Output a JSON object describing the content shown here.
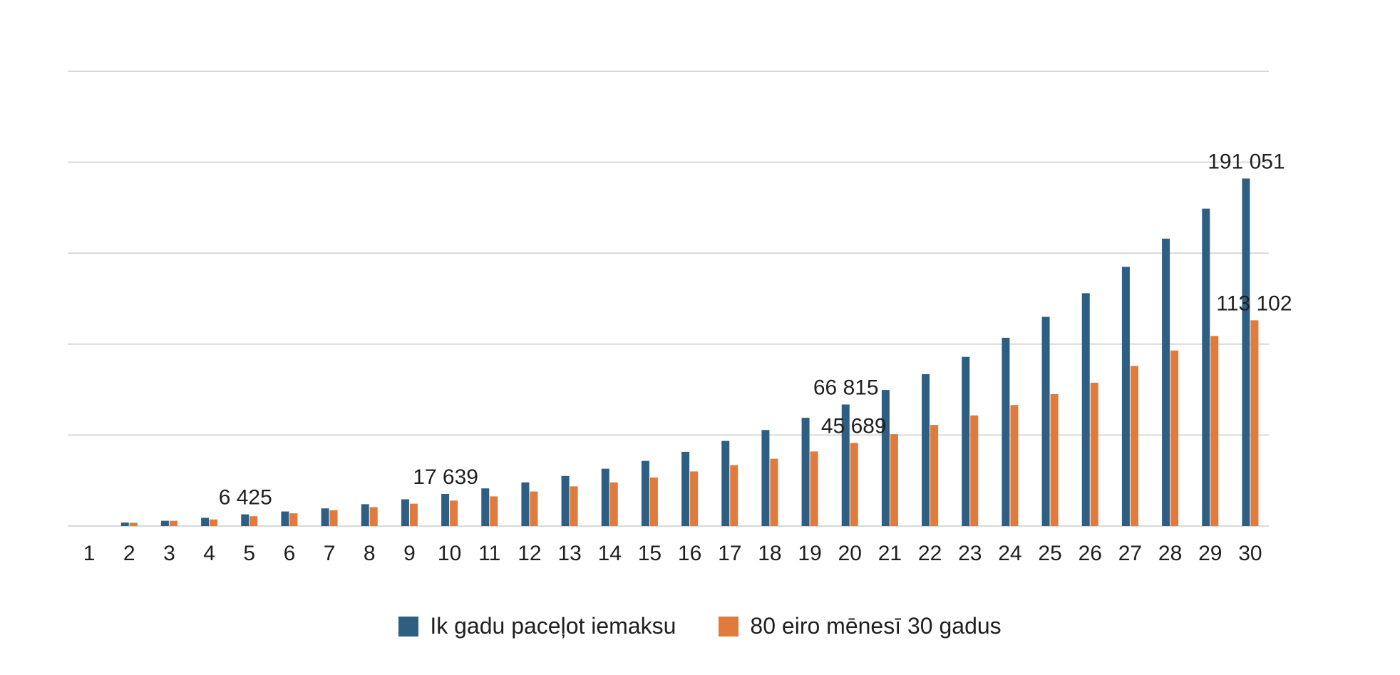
{
  "chart_data": {
    "type": "bar",
    "title": "",
    "xlabel": "",
    "ylabel": "",
    "categories": [
      "1",
      "2",
      "3",
      "4",
      "5",
      "6",
      "7",
      "8",
      "9",
      "10",
      "11",
      "12",
      "13",
      "14",
      "15",
      "16",
      "17",
      "18",
      "19",
      "20",
      "21",
      "22",
      "23",
      "24",
      "25",
      "26",
      "27",
      "28",
      "29",
      "30"
    ],
    "series": [
      {
        "name": "Ik gadu paceļot iemaksu",
        "color": "#2e5f82",
        "values": [
          0,
          1900,
          2900,
          4500,
          6425,
          8000,
          9700,
          12000,
          14700,
          17639,
          20700,
          24000,
          27500,
          31500,
          35800,
          40800,
          46800,
          52800,
          59500,
          66815,
          74800,
          83500,
          93000,
          103500,
          115000,
          128000,
          142500,
          158000,
          174500,
          191051
        ]
      },
      {
        "name": "80 eiro mēnesī 30 gadus",
        "color": "#e07a3d",
        "values": [
          0,
          1800,
          2900,
          3600,
          5400,
          7000,
          8700,
          10400,
          12300,
          14000,
          16300,
          19000,
          21800,
          24000,
          26700,
          30000,
          33500,
          37000,
          41000,
          45689,
          50500,
          55600,
          60800,
          66500,
          72500,
          78800,
          88000,
          96500,
          104500,
          113102
        ]
      }
    ],
    "data_labels": [
      {
        "series": 0,
        "index": 4,
        "text": "6 425"
      },
      {
        "series": 0,
        "index": 9,
        "text": "17 639"
      },
      {
        "series": 0,
        "index": 19,
        "text": "66 815"
      },
      {
        "series": 1,
        "index": 19,
        "text": "45 689"
      },
      {
        "series": 0,
        "index": 29,
        "text": "191 051"
      },
      {
        "series": 1,
        "index": 29,
        "text": "113 102"
      }
    ],
    "ylim": [
      0,
      250000
    ],
    "gridlines": [
      0,
      50000,
      100000,
      150000,
      200000,
      250000
    ],
    "grid": true,
    "y_tick_labels_shown": false,
    "legend_position": "bottom"
  }
}
